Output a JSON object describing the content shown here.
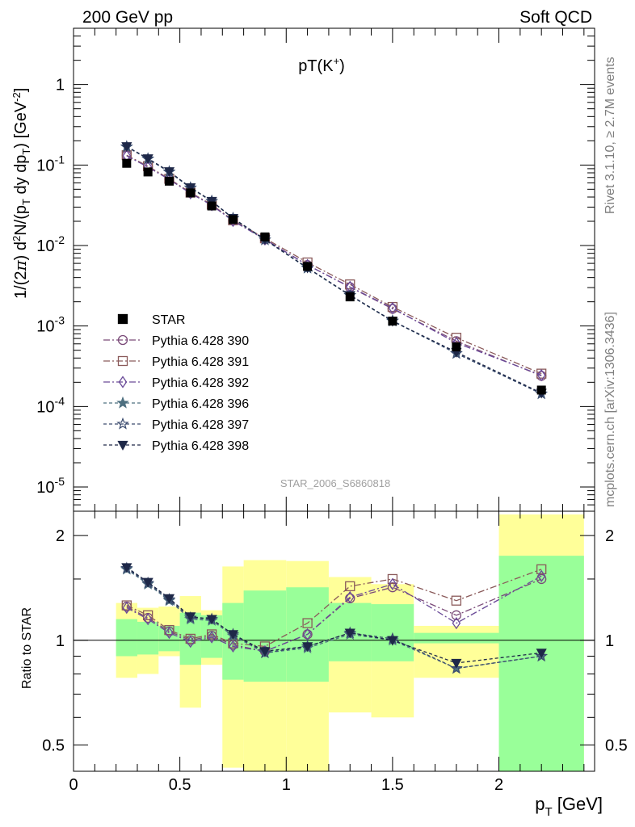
{
  "header": {
    "left": "200 GeV pp",
    "right": "Soft QCD",
    "plot_title": "pT(K",
    "plot_title_sup": "+",
    "plot_title_end": ")",
    "side_top": "Rivet 3.1.10, ≥ 2.7M events",
    "side_bottom": "mcplots.cern.ch [arXiv:1306.3436]",
    "watermark": "STAR_2006_S6860818"
  },
  "chart_data": {
    "type": "scatter",
    "x_axis": {
      "label": "p_T [GeV]",
      "range": [
        0,
        2.45
      ],
      "ticks": [
        "0",
        "0.5",
        "1",
        "1.5",
        "2"
      ]
    },
    "main_panel": {
      "ylabel": "1/(2π) d²N/(p_T dy dp_T) [GeV⁻²]",
      "yscale": "log",
      "ylim": [
        5e-06,
        5
      ],
      "ticks": [
        "1",
        "10^-1",
        "10^-2",
        "10^-3",
        "10^-4",
        "10^-5"
      ]
    },
    "ratio_panel": {
      "ylabel": "Ratio to STAR",
      "yscale": "log",
      "ylim": [
        0.42,
        2.35
      ],
      "ticks": [
        "0.5",
        "1",
        "2"
      ]
    },
    "x": [
      0.25,
      0.35,
      0.45,
      0.55,
      0.65,
      0.75,
      0.9,
      1.1,
      1.3,
      1.5,
      1.8,
      2.2
    ],
    "bins": [
      [
        0.2,
        0.3
      ],
      [
        0.3,
        0.4
      ],
      [
        0.4,
        0.5
      ],
      [
        0.5,
        0.6
      ],
      [
        0.6,
        0.7
      ],
      [
        0.7,
        0.8
      ],
      [
        0.8,
        1.0
      ],
      [
        1.0,
        1.2
      ],
      [
        1.2,
        1.4
      ],
      [
        1.4,
        1.6
      ],
      [
        1.6,
        2.0
      ],
      [
        2.0,
        2.4
      ]
    ],
    "reference": {
      "name": "STAR",
      "values": [
        0.105,
        0.082,
        0.063,
        0.045,
        0.031,
        0.021,
        0.0128,
        0.0055,
        0.0023,
        0.00115,
        0.00055,
        0.00016
      ]
    },
    "bands": {
      "stat_low": [
        0.9,
        0.91,
        0.93,
        0.85,
        0.89,
        0.77,
        0.76,
        0.76,
        0.87,
        0.87,
        0.98,
        0.4
      ],
      "stat_high": [
        1.15,
        1.13,
        1.1,
        1.2,
        1.18,
        1.28,
        1.39,
        1.42,
        1.28,
        1.27,
        1.05,
        1.75
      ],
      "syst_low": [
        0.78,
        0.8,
        0.9,
        0.64,
        0.85,
        0.43,
        0.41,
        0.41,
        0.62,
        0.6,
        0.78,
        0.4
      ],
      "syst_high": [
        1.28,
        1.24,
        1.25,
        1.34,
        1.22,
        1.63,
        1.7,
        1.69,
        1.52,
        1.45,
        1.1,
        2.3
      ]
    },
    "series": [
      {
        "name": "Pythia 6.428 390",
        "color": "#7a4a78",
        "marker": "circle-open",
        "dash": "8,3,2,3",
        "ratio": [
          1.25,
          1.16,
          1.06,
          1.0,
          1.03,
          0.97,
          0.93,
          1.04,
          1.32,
          1.42,
          1.18,
          1.5
        ]
      },
      {
        "name": "Pythia 6.428 391",
        "color": "#8a5a5a",
        "marker": "square-open",
        "dash": "8,3,2,3",
        "ratio": [
          1.26,
          1.18,
          1.07,
          1.01,
          1.04,
          0.98,
          0.96,
          1.12,
          1.43,
          1.5,
          1.3,
          1.6
        ]
      },
      {
        "name": "Pythia 6.428 392",
        "color": "#6a4a98",
        "marker": "diamond-open",
        "dash": "8,3,2,3",
        "ratio": [
          1.24,
          1.15,
          1.05,
          0.99,
          1.02,
          0.96,
          0.93,
          1.04,
          1.33,
          1.45,
          1.12,
          1.53
        ]
      },
      {
        "name": "Pythia 6.428 396",
        "color": "#4e7080",
        "marker": "star-filled",
        "dash": "4,3",
        "ratio": [
          1.6,
          1.45,
          1.3,
          1.15,
          1.14,
          1.03,
          0.92,
          0.95,
          1.04,
          1.0,
          0.83,
          0.9
        ]
      },
      {
        "name": "Pythia 6.428 397",
        "color": "#3a4a6e",
        "marker": "star-open",
        "dash": "4,3",
        "ratio": [
          1.61,
          1.46,
          1.31,
          1.16,
          1.15,
          1.04,
          0.92,
          0.96,
          1.05,
          1.01,
          0.83,
          0.9
        ]
      },
      {
        "name": "Pythia 6.428 398",
        "color": "#1e2848",
        "marker": "triangle-down-filled",
        "dash": "4,3",
        "ratio": [
          1.62,
          1.47,
          1.32,
          1.17,
          1.15,
          1.04,
          0.93,
          0.96,
          1.05,
          1.0,
          0.86,
          0.92
        ]
      }
    ],
    "colors": {
      "stat_band": "#99ff99",
      "syst_band": "#ffff99"
    }
  }
}
